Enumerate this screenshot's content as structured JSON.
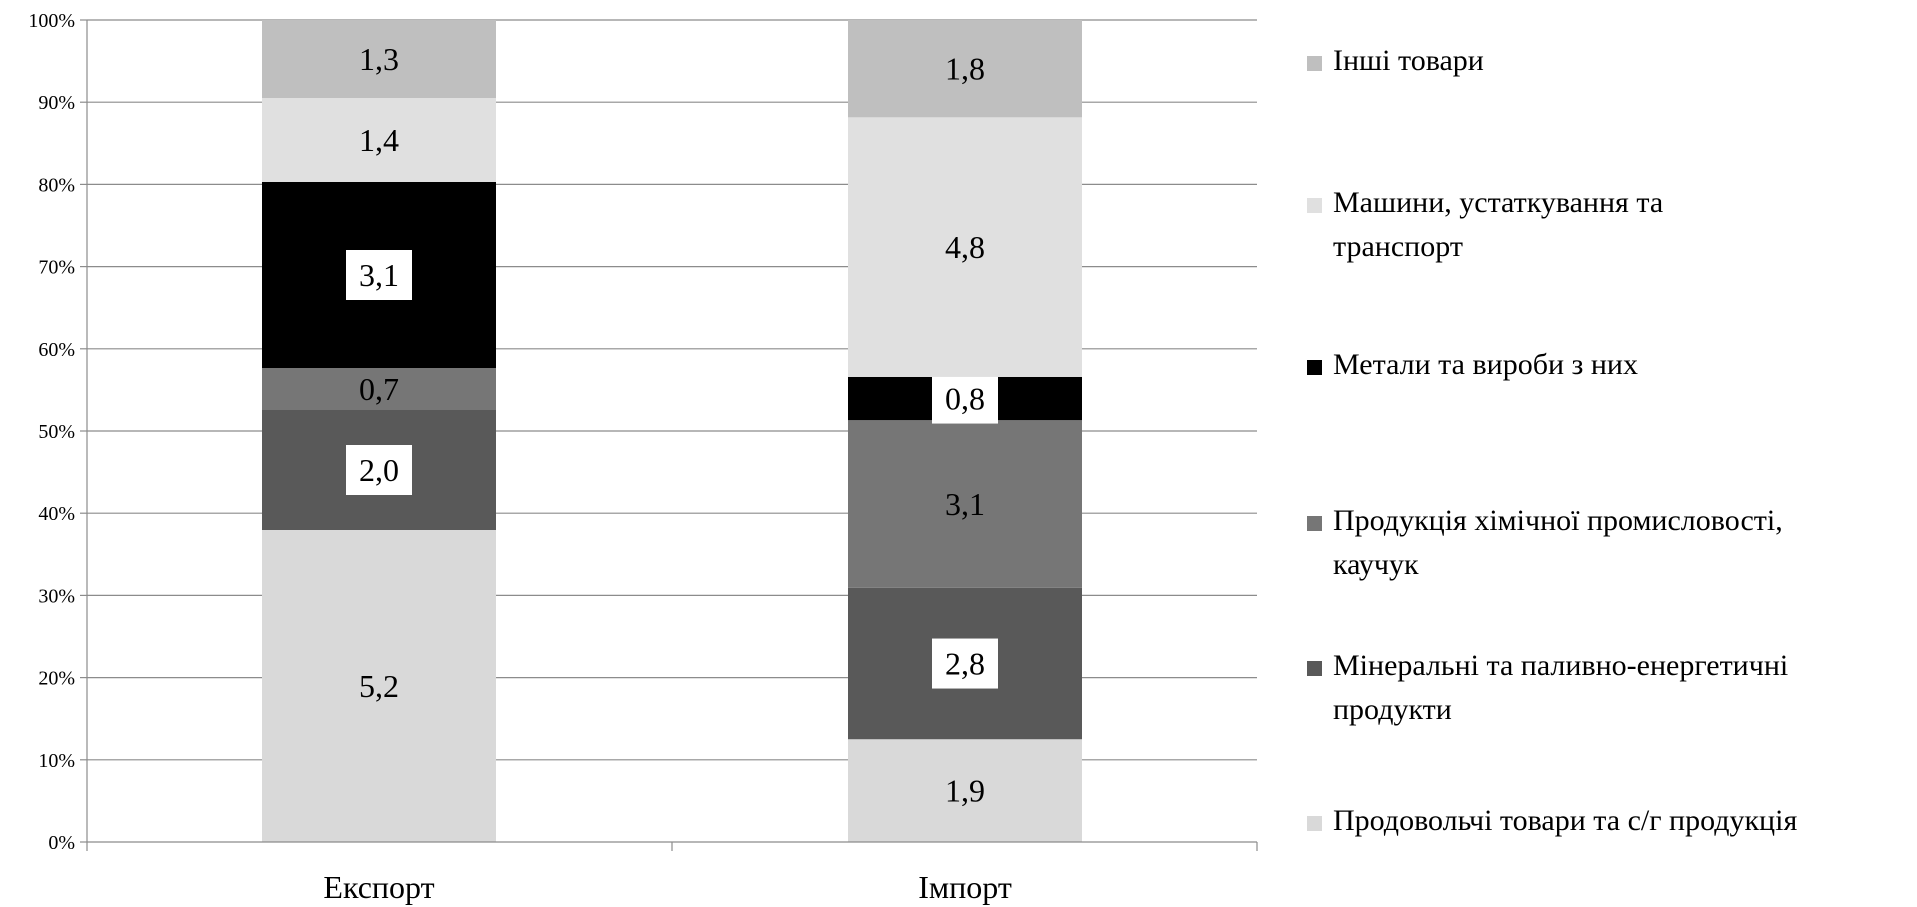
{
  "chart_data": {
    "type": "bar",
    "stacked": true,
    "percent_stacked": true,
    "categories": [
      "Експорт",
      "Імпорт"
    ],
    "y_axis": {
      "ylim": [
        0,
        100
      ],
      "ticks": [
        "0%",
        "10%",
        "20%",
        "30%",
        "40%",
        "50%",
        "60%",
        "70%",
        "80%",
        "90%",
        "100%"
      ]
    },
    "grid": true,
    "legend_position": "right",
    "series": [
      {
        "name": "Продовольчі товари та с/г продукція",
        "color": "#d9d9d9",
        "values": [
          5.2,
          1.9
        ],
        "labels": [
          "5,2",
          "1,9"
        ]
      },
      {
        "name": "Мінеральні та паливно-енергетичні продукти",
        "color": "#595959",
        "values": [
          2.0,
          2.8
        ],
        "labels": [
          "2,0",
          "2,8"
        ]
      },
      {
        "name": "Продукція хімічної промисловості, каучук",
        "color": "#767676",
        "values": [
          0.7,
          3.1
        ],
        "labels": [
          "0,7",
          "3,1"
        ]
      },
      {
        "name": "Метали та вироби з них",
        "color": "#000000",
        "values": [
          3.1,
          0.8
        ],
        "labels": [
          "3,1",
          "0,8"
        ]
      },
      {
        "name": "Машини, устаткування та транспорт",
        "color": "#e0e0e0",
        "values": [
          1.4,
          4.8
        ],
        "labels": [
          "1,4",
          "4,8"
        ]
      },
      {
        "name": "Інші товари",
        "color": "#bfbfbf",
        "values": [
          1.3,
          1.8
        ],
        "labels": [
          "1,3",
          "1,8"
        ]
      }
    ],
    "legend_order": [
      5,
      4,
      3,
      2,
      1,
      0
    ],
    "legend_lines": [
      [
        " Інші товари"
      ],
      [
        "Машини, устаткування та",
        "транспорт"
      ],
      [
        "Метали та вироби з них"
      ],
      [
        "Продукція хімічної промисловості,",
        "каучук"
      ],
      [
        "Мінеральні та паливно-енергетичні",
        "продукти"
      ],
      [
        "Продовольчі товари та с/г продукція"
      ]
    ],
    "boxed_labels": {
      "Експорт": [
        1,
        3
      ],
      "Імпорт": [
        1,
        3
      ]
    }
  }
}
